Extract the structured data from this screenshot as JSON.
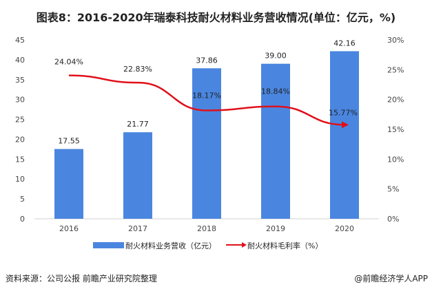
{
  "chart_data": {
    "type": "bar+line",
    "title": "图表8：2016-2020年瑞泰科技耐火材料业务营收情况(单位：亿元，%)",
    "categories": [
      "2016",
      "2017",
      "2018",
      "2019",
      "2020"
    ],
    "series": [
      {
        "name": "耐火材料业务营收（亿元）",
        "type": "bar",
        "axis": "left",
        "color": "#4a86e0",
        "values": [
          17.55,
          21.77,
          37.86,
          39.0,
          42.16
        ],
        "labels": [
          "17.55",
          "21.77",
          "37.86",
          "39.00",
          "42.16"
        ]
      },
      {
        "name": "耐火材料毛利率（%）",
        "type": "line",
        "axis": "right",
        "color": "#e0101a",
        "values": [
          24.04,
          22.83,
          18.17,
          18.84,
          15.77
        ],
        "labels": [
          "24.04%",
          "22.83%",
          "18.17%",
          "18.84%",
          "15.77%"
        ]
      }
    ],
    "ylim_left": [
      0,
      45
    ],
    "yticks_left": [
      "0",
      "5",
      "10",
      "15",
      "20",
      "25",
      "30",
      "35",
      "40",
      "45"
    ],
    "ylim_right": [
      0,
      30
    ],
    "yticks_right": [
      "0%",
      "5%",
      "10%",
      "15%",
      "20%",
      "25%",
      "30%"
    ],
    "grid": false,
    "legend": "bottom"
  },
  "footer": {
    "source": "资料来源：公司公报 前瞻产业研究院整理",
    "credit": "@前瞻经济学人APP"
  }
}
